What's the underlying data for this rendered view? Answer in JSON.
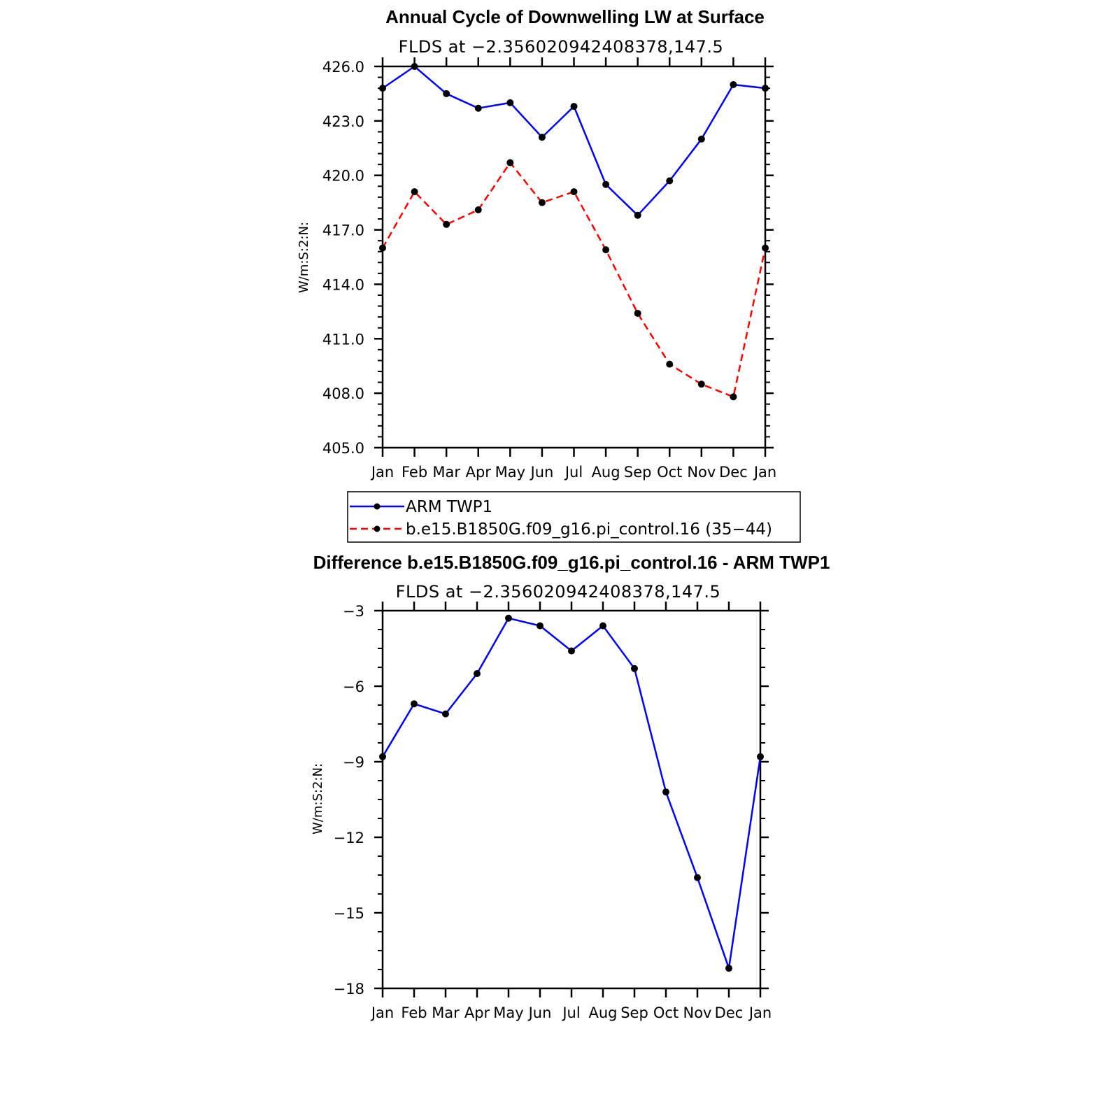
{
  "chart_data": [
    {
      "type": "line",
      "title": "Annual Cycle of Downwelling LW at Surface",
      "subtitle": "FLDS at −2.356020942408378,147.5",
      "xlabel": "",
      "ylabel": "W/m:S:2:N:",
      "categories": [
        "Jan",
        "Feb",
        "Mar",
        "Apr",
        "May",
        "Jun",
        "Jul",
        "Aug",
        "Sep",
        "Oct",
        "Nov",
        "Dec",
        "Jan"
      ],
      "ylim": [
        405,
        426
      ],
      "yticks": [
        "405.0",
        "408.0",
        "411.0",
        "414.0",
        "417.0",
        "420.0",
        "423.0",
        "426.0"
      ],
      "series": [
        {
          "name": "ARM TWP1",
          "color": "#0000ff",
          "dash": "solid",
          "values": [
            424.8,
            426.0,
            424.5,
            423.7,
            424.0,
            422.1,
            423.8,
            419.5,
            417.8,
            419.7,
            422.0,
            425.0,
            424.8
          ]
        },
        {
          "name": "b.e15.B1850G.f09_g16.pi_control.16 (35−44)",
          "color": "#ff0000",
          "dash": "dashed",
          "values": [
            416.0,
            419.1,
            417.3,
            418.1,
            420.7,
            418.5,
            419.1,
            415.9,
            412.4,
            409.6,
            408.5,
            407.8,
            416.0
          ]
        }
      ],
      "legend": "below"
    },
    {
      "type": "line",
      "title": "Difference b.e15.B1850G.f09_g16.pi_control.16 - ARM TWP1",
      "subtitle": "FLDS at −2.356020942408378,147.5",
      "xlabel": "",
      "ylabel": "W/m:S:2:N:",
      "categories": [
        "Jan",
        "Feb",
        "Mar",
        "Apr",
        "May",
        "Jun",
        "Jul",
        "Aug",
        "Sep",
        "Oct",
        "Nov",
        "Dec",
        "Jan"
      ],
      "ylim": [
        -18,
        -3
      ],
      "yticks": [
        "−18",
        "−15",
        "−12",
        "−9",
        "−6",
        "−3"
      ],
      "series": [
        {
          "name": "Difference",
          "color": "#0000ff",
          "dash": "solid",
          "values": [
            -8.8,
            -6.7,
            -7.1,
            -5.5,
            -3.3,
            -3.6,
            -4.6,
            -3.6,
            -5.3,
            -10.2,
            -13.6,
            -17.2,
            -8.8
          ]
        }
      ]
    }
  ]
}
